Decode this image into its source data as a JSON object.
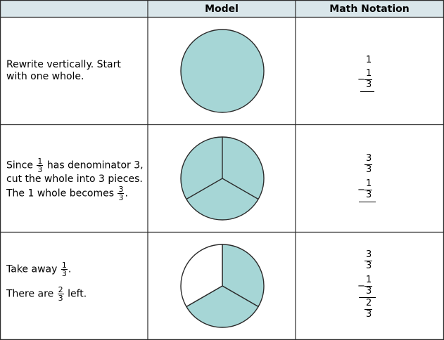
{
  "header": {
    "col1": "",
    "col2": "Model",
    "col3": "Math Notation"
  },
  "rows": [
    {
      "description": "Rewrite vertically. Start with one whole.",
      "notation": {
        "top": "1",
        "operator": "−",
        "sub_num": "1",
        "sub_den": "3"
      }
    },
    {
      "description": {
        "p1": "Since",
        "frac_num": "1",
        "frac_den": "3",
        "p2": "has denominator 3,",
        "line2": "cut the whole into 3 pieces.",
        "line3_pre": "The 1 whole becomes",
        "frac2_num": "3",
        "frac2_den": "3",
        "line3_post": "."
      },
      "notation": {
        "top_num": "3",
        "top_den": "3",
        "operator": "−",
        "sub_num": "1",
        "sub_den": "3"
      }
    },
    {
      "description": {
        "line1_pre": "Take away",
        "frac_num": "1",
        "frac_den": "3",
        "line1_post": ".",
        "line2_pre": "There are",
        "frac2_num": "2",
        "frac2_den": "3",
        "line2_post": "left."
      },
      "notation": {
        "top_num": "3",
        "top_den": "3",
        "operator": "−",
        "sub_num": "1",
        "sub_den": "3",
        "res_num": "2",
        "res_den": "3"
      }
    }
  ],
  "colors": {
    "fill": "#a6d6d6",
    "header_bg": "#d9e6ea",
    "border": "#2b2b2b"
  },
  "models": [
    "whole-circle",
    "circle-in-thirds",
    "circle-thirds-one-removed"
  ]
}
